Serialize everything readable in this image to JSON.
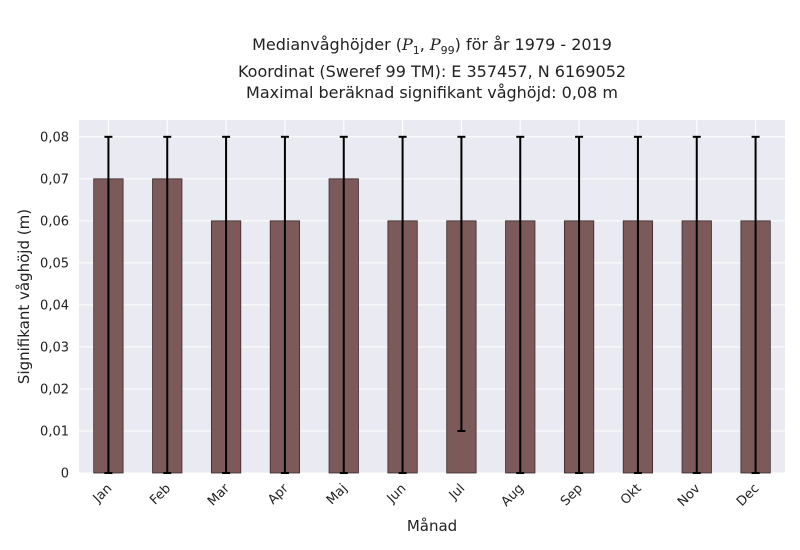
{
  "chart_data": {
    "type": "bar",
    "title": {
      "line1_prefix": "Medianvåghöjder (",
      "p_symbol": "P",
      "p1_sub": "1",
      "p99_sub": "99",
      "line1_suffix": ") för år 1979 - 2019",
      "line2": "Koordinat (Sweref 99 TM): E 357457, N 6169052",
      "line3": "Maximal beräknad signifikant våghöjd: 0,08 m"
    },
    "xlabel": "Månad",
    "ylabel": "Signifikant våghöjd (m)",
    "categories": [
      "Jan",
      "Feb",
      "Mar",
      "Apr",
      "Maj",
      "Jun",
      "Jul",
      "Aug",
      "Sep",
      "Okt",
      "Nov",
      "Dec"
    ],
    "values": [
      0.07,
      0.07,
      0.06,
      0.06,
      0.07,
      0.06,
      0.06,
      0.06,
      0.06,
      0.06,
      0.06,
      0.06
    ],
    "error_low": [
      0,
      0,
      0,
      0,
      0,
      0,
      0.01,
      0,
      0,
      0,
      0,
      0
    ],
    "error_high": [
      0.08,
      0.08,
      0.08,
      0.08,
      0.08,
      0.08,
      0.08,
      0.08,
      0.08,
      0.08,
      0.08,
      0.08
    ],
    "ylim": [
      0,
      0.084
    ],
    "yticks": [
      0,
      0.01,
      0.02,
      0.03,
      0.04,
      0.05,
      0.06,
      0.07,
      0.08
    ],
    "ytick_labels": [
      "0",
      "0,01",
      "0,02",
      "0,03",
      "0,04",
      "0,05",
      "0,06",
      "0,07",
      "0,08"
    ],
    "grid": true,
    "colors": {
      "bar": "#7c5a5a",
      "bar_edge": "#3a2a2a",
      "plot_bg": "#eaeaf2",
      "grid": "#ffffff",
      "errorbar": "#000000"
    }
  }
}
